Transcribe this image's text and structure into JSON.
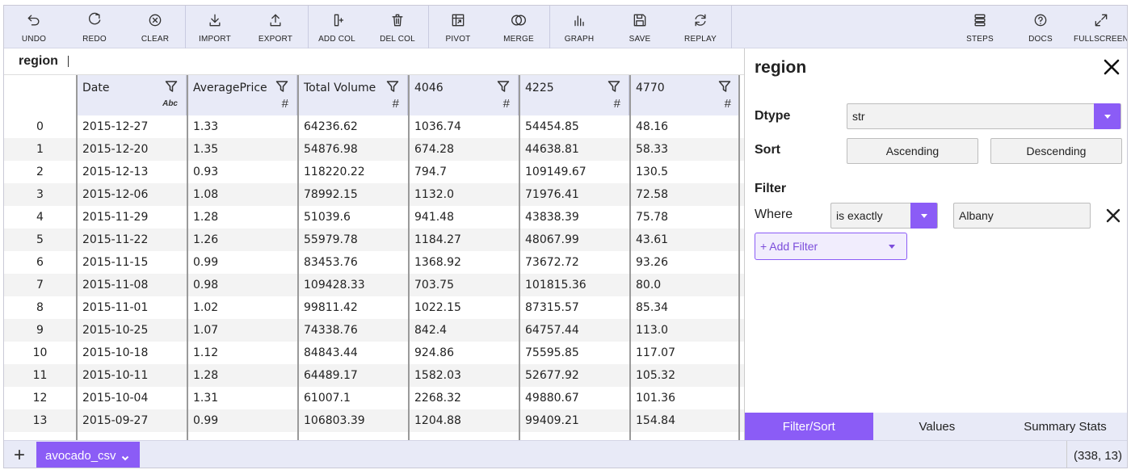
{
  "toolbar": {
    "undo": "UNDO",
    "redo": "REDO",
    "clear": "CLEAR",
    "import": "IMPORT",
    "export": "EXPORT",
    "add_col": "ADD COL",
    "del_col": "DEL COL",
    "pivot": "PIVOT",
    "merge": "MERGE",
    "graph": "GRAPH",
    "save": "SAVE",
    "replay": "REPLAY",
    "steps": "STEPS",
    "docs": "DOCS",
    "fullscreen": "FULLSCREEN"
  },
  "column_search": {
    "value": "region"
  },
  "grid": {
    "columns": [
      {
        "name": "Date",
        "type": "Abc"
      },
      {
        "name": "AveragePrice",
        "type": "#"
      },
      {
        "name": "Total Volume",
        "type": "#"
      },
      {
        "name": "4046",
        "type": "#"
      },
      {
        "name": "4225",
        "type": "#"
      },
      {
        "name": "4770",
        "type": "#"
      }
    ],
    "rows": [
      [
        "0",
        "2015-12-27",
        "1.33",
        "64236.62",
        "1036.74",
        "54454.85",
        "48.16"
      ],
      [
        "1",
        "2015-12-20",
        "1.35",
        "54876.98",
        "674.28",
        "44638.81",
        "58.33"
      ],
      [
        "2",
        "2015-12-13",
        "0.93",
        "118220.22",
        "794.7",
        "109149.67",
        "130.5"
      ],
      [
        "3",
        "2015-12-06",
        "1.08",
        "78992.15",
        "1132.0",
        "71976.41",
        "72.58"
      ],
      [
        "4",
        "2015-11-29",
        "1.28",
        "51039.6",
        "941.48",
        "43838.39",
        "75.78"
      ],
      [
        "5",
        "2015-11-22",
        "1.26",
        "55979.78",
        "1184.27",
        "48067.99",
        "43.61"
      ],
      [
        "6",
        "2015-11-15",
        "0.99",
        "83453.76",
        "1368.92",
        "73672.72",
        "93.26"
      ],
      [
        "7",
        "2015-11-08",
        "0.98",
        "109428.33",
        "703.75",
        "101815.36",
        "80.0"
      ],
      [
        "8",
        "2015-11-01",
        "1.02",
        "99811.42",
        "1022.15",
        "87315.57",
        "85.34"
      ],
      [
        "9",
        "2015-10-25",
        "1.07",
        "74338.76",
        "842.4",
        "64757.44",
        "113.0"
      ],
      [
        "10",
        "2015-10-18",
        "1.12",
        "84843.44",
        "924.86",
        "75595.85",
        "117.07"
      ],
      [
        "11",
        "2015-10-11",
        "1.28",
        "64489.17",
        "1582.03",
        "52677.92",
        "105.32"
      ],
      [
        "12",
        "2015-10-04",
        "1.31",
        "61007.1",
        "2268.32",
        "49880.67",
        "101.36"
      ],
      [
        "13",
        "2015-09-27",
        "0.99",
        "106803.39",
        "1204.88",
        "99409.21",
        "154.84"
      ]
    ]
  },
  "panel": {
    "title": "region",
    "dtype_label": "Dtype",
    "dtype_value": "str",
    "sort_label": "Sort",
    "ascending": "Ascending",
    "descending": "Descending",
    "filter_label": "Filter",
    "where_label": "Where",
    "condition": "is exactly",
    "filter_value": "Albany",
    "add_filter": "+ Add Filter",
    "tabs": [
      "Filter/Sort",
      "Values",
      "Summary Stats"
    ]
  },
  "bottom": {
    "plus": "+",
    "sheet": "avocado_csv",
    "shape": "(338, 13)"
  },
  "colors": {
    "accent": "#8b5cf6",
    "toolbar_bg": "#e8eaf7",
    "row_alt": "#f3f3f3"
  }
}
